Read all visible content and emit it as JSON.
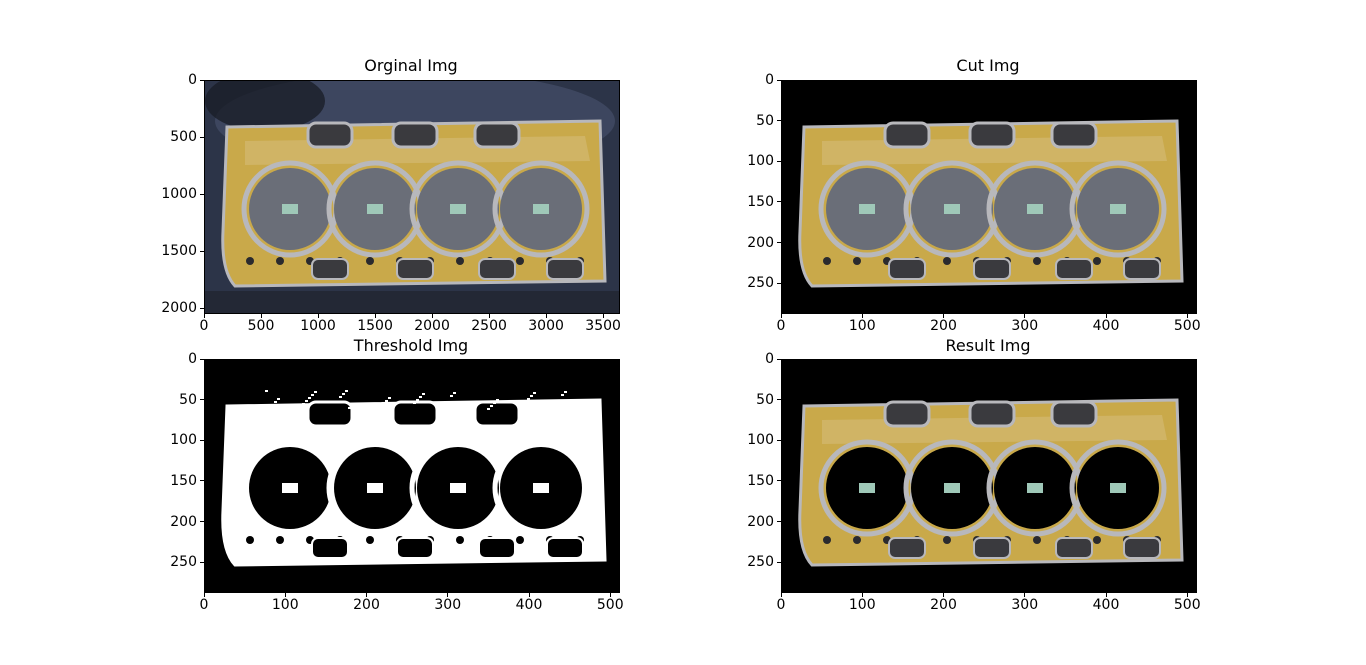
{
  "figure": {
    "background": "#ffffff",
    "panels": [
      {
        "id": "original",
        "title": "Orginal Img",
        "xticks": [
          "0",
          "500",
          "1000",
          "1500",
          "2000",
          "2500",
          "3000",
          "3500"
        ],
        "yticks": [
          "0",
          "500",
          "1000",
          "1500",
          "2000"
        ],
        "xlim": [
          0,
          3648
        ],
        "ylim": [
          2052,
          0
        ],
        "style": "photo"
      },
      {
        "id": "cut",
        "title": "Cut Img",
        "xticks": [
          "0",
          "100",
          "200",
          "300",
          "400",
          "500"
        ],
        "yticks": [
          "0",
          "50",
          "100",
          "150",
          "200",
          "250"
        ],
        "xlim": [
          0,
          512
        ],
        "ylim": [
          288,
          0
        ],
        "style": "cut"
      },
      {
        "id": "threshold",
        "title": "Threshold Img",
        "xticks": [
          "0",
          "100",
          "200",
          "300",
          "400",
          "500"
        ],
        "yticks": [
          "0",
          "50",
          "100",
          "150",
          "200",
          "250"
        ],
        "xlim": [
          0,
          512
        ],
        "ylim": [
          288,
          0
        ],
        "style": "threshold"
      },
      {
        "id": "result",
        "title": "Result Img",
        "xticks": [
          "0",
          "100",
          "200",
          "300",
          "400",
          "500"
        ],
        "yticks": [
          "0",
          "50",
          "100",
          "150",
          "200",
          "250"
        ],
        "xlim": [
          0,
          512
        ],
        "ylim": [
          288,
          0
        ],
        "style": "result"
      }
    ]
  },
  "chart_data": [
    {
      "type": "image",
      "title": "Orginal Img",
      "xlim": [
        0,
        3648
      ],
      "ylim": [
        2052,
        0
      ]
    },
    {
      "type": "image",
      "title": "Cut Img",
      "xlim": [
        0,
        512
      ],
      "ylim": [
        288,
        0
      ]
    },
    {
      "type": "image",
      "title": "Threshold Img",
      "xlim": [
        0,
        512
      ],
      "ylim": [
        288,
        0
      ]
    },
    {
      "type": "image",
      "title": "Result Img",
      "xlim": [
        0,
        512
      ],
      "ylim": [
        288,
        0
      ]
    }
  ],
  "colors": {
    "gasket_gold": "#c9a94a",
    "gasket_silver": "#b8b8bc",
    "cylinder_gray": "#6a6e78",
    "backdrop_blue": "#2c3448",
    "black": "#000000",
    "white": "#ffffff"
  }
}
